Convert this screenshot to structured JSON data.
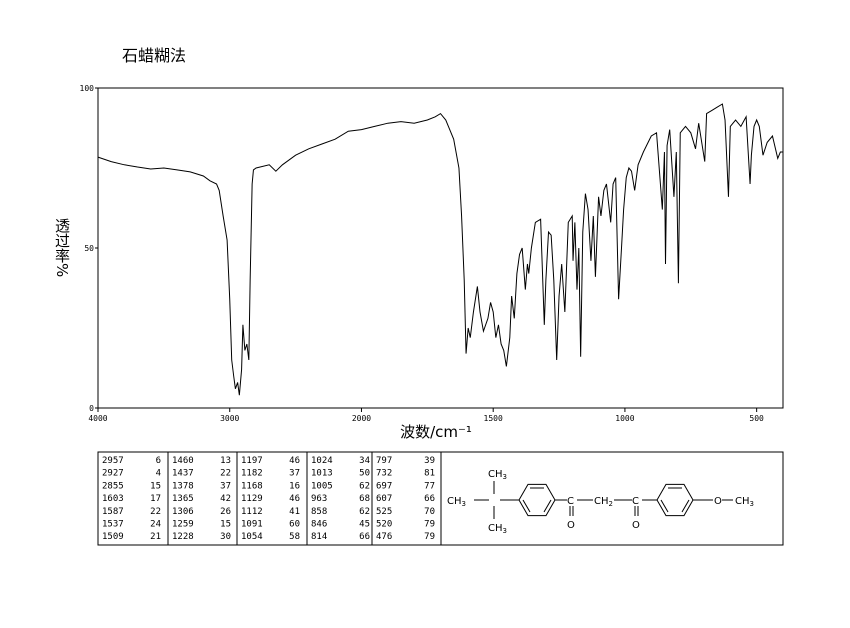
{
  "chart_data": {
    "type": "line",
    "title": "石蜡糊法",
    "xlabel": "波数/cm⁻¹",
    "ylabel": "透过率%",
    "xlim": [
      4000,
      400
    ],
    "ylim": [
      0,
      100
    ],
    "xticks": [
      4000,
      3000,
      2000,
      1500,
      1000,
      500
    ],
    "yticks": [
      0,
      50,
      100
    ],
    "xscale": {
      "break": 2000,
      "factor": 2
    },
    "color": "#000000",
    "x": [
      4000,
      3900,
      3800,
      3700,
      3600,
      3500,
      3400,
      3300,
      3200,
      3150,
      3100,
      3080,
      3050,
      3020,
      3000,
      2985,
      2970,
      2957,
      2940,
      2927,
      2910,
      2900,
      2885,
      2870,
      2855,
      2845,
      2830,
      2820,
      2800,
      2700,
      2650,
      2600,
      2500,
      2400,
      2300,
      2200,
      2100,
      2000,
      1950,
      1900,
      1850,
      1800,
      1750,
      1720,
      1700,
      1680,
      1650,
      1630,
      1620,
      1610,
      1603,
      1595,
      1587,
      1575,
      1560,
      1550,
      1537,
      1520,
      1510,
      1500,
      1490,
      1480,
      1470,
      1460,
      1450,
      1437,
      1430,
      1420,
      1410,
      1400,
      1390,
      1378,
      1370,
      1365,
      1355,
      1340,
      1320,
      1306,
      1300,
      1290,
      1280,
      1270,
      1259,
      1250,
      1240,
      1228,
      1215,
      1200,
      1197,
      1190,
      1182,
      1175,
      1168,
      1160,
      1150,
      1140,
      1129,
      1120,
      1112,
      1100,
      1091,
      1080,
      1070,
      1054,
      1045,
      1035,
      1024,
      1013,
      1005,
      995,
      985,
      975,
      963,
      950,
      930,
      900,
      880,
      858,
      850,
      846,
      840,
      830,
      814,
      805,
      797,
      790,
      770,
      750,
      732,
      720,
      697,
      690,
      670,
      650,
      630,
      620,
      607,
      600,
      580,
      560,
      540,
      525,
      520,
      510,
      500,
      490,
      476,
      460,
      440,
      420,
      410,
      400
    ],
    "values": [
      78.4,
      77,
      76,
      75.3,
      74.7,
      75,
      74.4,
      73.8,
      72.5,
      71,
      70,
      68,
      60,
      52.5,
      34,
      15,
      10,
      6,
      8,
      4,
      12,
      26,
      18,
      20,
      15,
      40,
      70,
      74.4,
      75,
      76,
      74,
      76,
      79,
      81,
      82.5,
      84,
      86.5,
      87,
      88,
      89,
      89.5,
      89,
      90,
      91,
      92,
      90,
      84,
      75,
      60,
      40,
      17,
      25,
      22,
      30,
      38,
      30,
      24,
      28,
      33,
      30,
      22,
      26,
      20,
      18,
      13,
      22,
      35,
      28,
      42,
      48,
      50,
      37,
      45,
      42,
      50,
      58,
      59,
      26,
      40,
      55,
      54,
      40,
      15,
      35,
      45,
      30,
      58,
      60,
      46,
      58,
      37,
      50,
      16,
      55,
      67,
      62,
      46,
      60,
      41,
      66,
      60,
      68,
      70,
      58,
      70,
      72,
      34,
      50,
      62,
      72,
      75,
      74,
      68,
      76,
      80,
      85,
      86,
      62,
      80,
      45,
      82,
      87,
      66,
      80,
      39,
      86,
      88,
      86,
      81,
      89,
      77,
      92,
      93,
      94,
      95,
      90,
      66,
      88,
      90,
      88,
      91,
      70,
      79,
      88,
      90,
      88,
      79,
      83,
      85,
      78,
      80,
      80
    ]
  },
  "peak_table": {
    "columns": [
      [
        [
          2957,
          6
        ],
        [
          2927,
          4
        ],
        [
          2855,
          15
        ],
        [
          1603,
          17
        ],
        [
          1587,
          22
        ],
        [
          1537,
          24
        ],
        [
          1509,
          21
        ]
      ],
      [
        [
          1460,
          13
        ],
        [
          1437,
          22
        ],
        [
          1378,
          37
        ],
        [
          1365,
          42
        ],
        [
          1306,
          26
        ],
        [
          1259,
          15
        ],
        [
          1228,
          30
        ]
      ],
      [
        [
          1197,
          46
        ],
        [
          1182,
          37
        ],
        [
          1168,
          16
        ],
        [
          1129,
          46
        ],
        [
          1112,
          41
        ],
        [
          1091,
          60
        ],
        [
          1054,
          58
        ]
      ],
      [
        [
          1024,
          34
        ],
        [
          1013,
          50
        ],
        [
          1005,
          62
        ],
        [
          963,
          68
        ],
        [
          858,
          62
        ],
        [
          846,
          45
        ],
        [
          814,
          66
        ]
      ],
      [
        [
          797,
          39
        ],
        [
          732,
          81
        ],
        [
          697,
          77
        ],
        [
          607,
          66
        ],
        [
          525,
          70
        ],
        [
          520,
          79
        ],
        [
          476,
          79
        ]
      ]
    ]
  },
  "structure": {
    "labels": [
      {
        "text": "CH",
        "sub": "3"
      },
      {
        "text": "CH",
        "sub": "3"
      },
      {
        "text": "CH",
        "sub": "3"
      },
      {
        "text": "C"
      },
      {
        "text": "O"
      },
      {
        "text": "CH",
        "sub": "2"
      },
      {
        "text": "C"
      },
      {
        "text": "O"
      },
      {
        "text": "O"
      },
      {
        "text": "CH",
        "sub": "3"
      }
    ]
  }
}
